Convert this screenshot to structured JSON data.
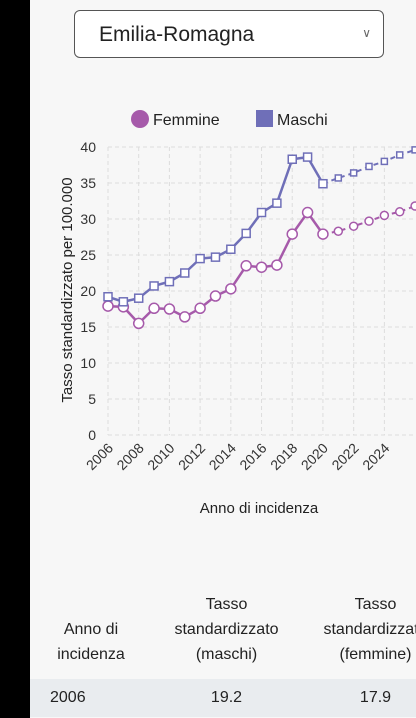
{
  "selector": {
    "selected": "Emilia-Romagna"
  },
  "chart_data": {
    "type": "line",
    "x": [
      2006,
      2007,
      2008,
      2009,
      2010,
      2011,
      2012,
      2013,
      2014,
      2015,
      2016,
      2017,
      2018,
      2019,
      2020,
      2021,
      2022,
      2023,
      2024,
      2025,
      2026
    ],
    "series": [
      {
        "name": "Femmine",
        "color": "#a65aaa",
        "marker": "circle",
        "values": [
          17.9,
          17.8,
          15.5,
          17.6,
          17.5,
          16.4,
          17.6,
          19.3,
          20.3,
          23.5,
          23.3,
          23.6,
          27.9,
          30.9,
          27.9,
          28.3,
          29.0,
          29.7,
          30.5,
          31.0,
          31.8
        ],
        "projected_from": 2020
      },
      {
        "name": "Maschi",
        "color": "#6f6fb8",
        "marker": "square",
        "values": [
          19.2,
          18.5,
          19.0,
          20.7,
          21.3,
          22.5,
          24.5,
          24.7,
          25.8,
          28.0,
          30.9,
          32.2,
          38.3,
          38.6,
          34.9,
          35.7,
          36.4,
          37.3,
          38.0,
          38.9,
          39.6
        ],
        "projected_from": 2020
      }
    ],
    "ylim": [
      0,
      40
    ],
    "yticks": [
      0,
      5,
      10,
      15,
      20,
      25,
      30,
      35,
      40
    ],
    "xticks": [
      2006,
      2008,
      2010,
      2012,
      2014,
      2016,
      2018,
      2020,
      2022,
      2024
    ],
    "ylabel": "Tasso standardizzato per 100.000",
    "xlabel": "Anno di incidenza",
    "legend_position": "top",
    "grid": true
  },
  "table": {
    "headers": {
      "year": [
        "Anno di",
        "incidenza"
      ],
      "male": [
        "Tasso",
        "standardizzato",
        "(maschi)"
      ],
      "female": [
        "Tasso",
        "standardizzato",
        "(femmine)"
      ]
    },
    "rows": [
      {
        "year": "2006",
        "male": "19.2",
        "female": "17.9"
      }
    ]
  }
}
